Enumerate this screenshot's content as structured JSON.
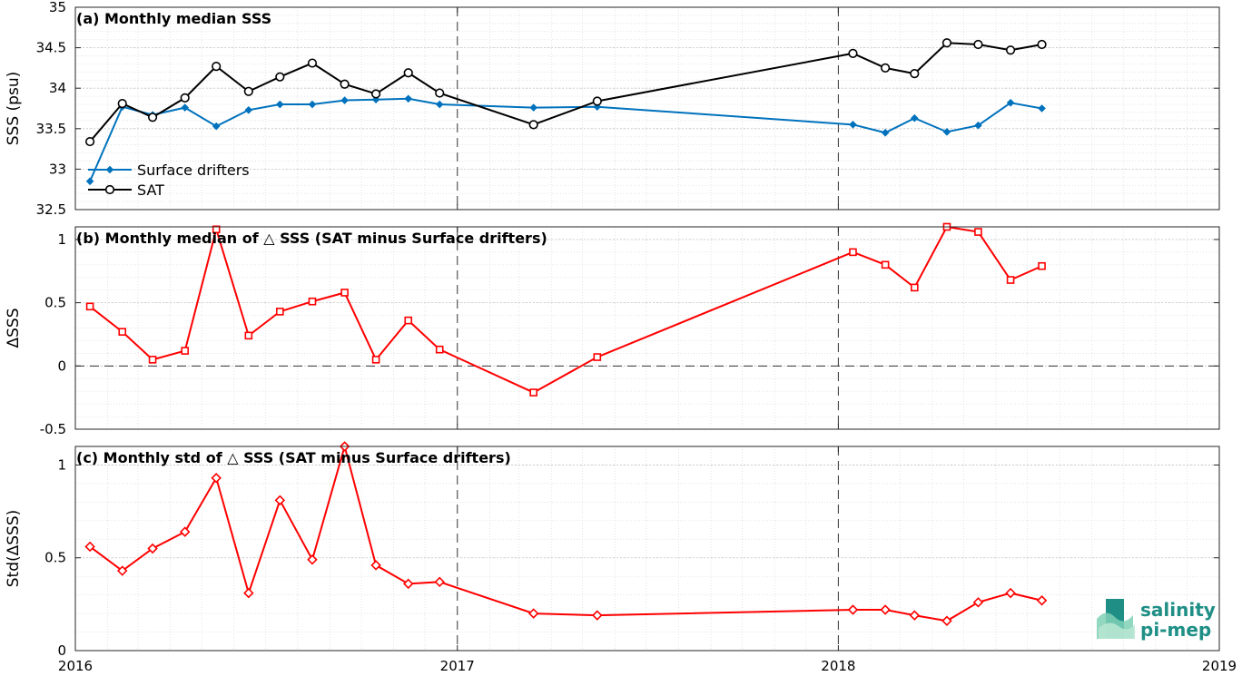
{
  "chart_data": [
    {
      "type": "line",
      "panel": "a",
      "title": "(a) Monthly median SSS",
      "ylabel": "SSS (psu)",
      "xlabel": "",
      "xlim": [
        "2016-01-01",
        "2019-01-01"
      ],
      "ylim": [
        32.5,
        35
      ],
      "yticks": [
        32.5,
        33,
        33.5,
        34,
        34.5,
        35
      ],
      "ytick_labels": [
        "32.5",
        "33",
        "33.5",
        "34",
        "34.5",
        "35"
      ],
      "grid": true,
      "legend": "bottom-left",
      "series": [
        {
          "name": "Surface drifters",
          "color": "#0072BD",
          "marker": "diamond",
          "x": [
            "2016-01-15",
            "2016-02-15",
            "2016-03-15",
            "2016-04-15",
            "2016-05-15",
            "2016-06-15",
            "2016-07-15",
            "2016-08-15",
            "2016-09-15",
            "2016-10-15",
            "2016-11-15",
            "2016-12-15",
            "2017-03-15",
            "2017-05-15",
            "2018-01-15",
            "2018-02-15",
            "2018-03-15",
            "2018-04-15",
            "2018-05-15",
            "2018-06-15",
            "2018-07-15"
          ],
          "y": [
            32.85,
            33.77,
            33.67,
            33.76,
            33.53,
            33.73,
            33.8,
            33.8,
            33.85,
            33.86,
            33.87,
            33.8,
            33.76,
            33.77,
            33.55,
            33.45,
            33.63,
            33.46,
            33.54,
            33.82,
            33.75
          ]
        },
        {
          "name": "SAT",
          "color": "#000000",
          "marker": "circle",
          "x": [
            "2016-01-15",
            "2016-02-15",
            "2016-03-15",
            "2016-04-15",
            "2016-05-15",
            "2016-06-15",
            "2016-07-15",
            "2016-08-15",
            "2016-09-15",
            "2016-10-15",
            "2016-11-15",
            "2016-12-15",
            "2017-03-15",
            "2017-05-15",
            "2018-01-15",
            "2018-02-15",
            "2018-03-15",
            "2018-04-15",
            "2018-05-15",
            "2018-06-15",
            "2018-07-15"
          ],
          "y": [
            33.34,
            33.81,
            33.64,
            33.88,
            34.27,
            33.96,
            34.14,
            34.31,
            34.05,
            33.93,
            34.19,
            33.94,
            33.55,
            33.84,
            34.43,
            34.25,
            34.18,
            34.56,
            34.54,
            34.47,
            34.54
          ]
        }
      ]
    },
    {
      "type": "line",
      "panel": "b",
      "title": "(b) Monthly median of △ SSS (SAT minus Surface drifters)",
      "ylabel": "ΔSSS",
      "xlabel": "",
      "xlim": [
        "2016-01-01",
        "2019-01-01"
      ],
      "ylim": [
        -0.5,
        1.1
      ],
      "yticks": [
        -0.5,
        0,
        0.5,
        1
      ],
      "ytick_labels": [
        "-0.5",
        "0",
        "0.5",
        "1"
      ],
      "grid": true,
      "series": [
        {
          "color": "#FF0000",
          "marker": "square",
          "x": [
            "2016-01-15",
            "2016-02-15",
            "2016-03-15",
            "2016-04-15",
            "2016-05-15",
            "2016-06-15",
            "2016-07-15",
            "2016-08-15",
            "2016-09-15",
            "2016-10-15",
            "2016-11-15",
            "2016-12-15",
            "2017-03-15",
            "2017-05-15",
            "2018-01-15",
            "2018-02-15",
            "2018-03-15",
            "2018-04-15",
            "2018-05-15",
            "2018-06-15",
            "2018-07-15"
          ],
          "y": [
            0.47,
            0.27,
            0.05,
            0.12,
            1.08,
            0.24,
            0.43,
            0.51,
            0.58,
            0.05,
            0.36,
            0.13,
            -0.21,
            0.07,
            0.9,
            0.8,
            0.62,
            1.1,
            1.06,
            0.68,
            0.79
          ]
        }
      ]
    },
    {
      "type": "line",
      "panel": "c",
      "title": "(c) Monthly std of △ SSS (SAT minus Surface drifters)",
      "ylabel": "Std(ΔSSS)",
      "xlabel": "",
      "xlim": [
        "2016-01-01",
        "2019-01-01"
      ],
      "ylim": [
        0,
        1.1
      ],
      "yticks": [
        0,
        0.5,
        1
      ],
      "ytick_labels": [
        "0",
        "0.5",
        "1"
      ],
      "xticks": [
        "2016-01-01",
        "2017-01-01",
        "2018-01-01",
        "2019-01-01"
      ],
      "xtick_labels": [
        "2016",
        "2017",
        "2018",
        "2019"
      ],
      "grid": true,
      "series": [
        {
          "color": "#FF0000",
          "marker": "diamond-open",
          "x": [
            "2016-01-15",
            "2016-02-15",
            "2016-03-15",
            "2016-04-15",
            "2016-05-15",
            "2016-06-15",
            "2016-07-15",
            "2016-08-15",
            "2016-09-15",
            "2016-10-15",
            "2016-11-15",
            "2016-12-15",
            "2017-03-15",
            "2017-05-15",
            "2018-01-15",
            "2018-02-15",
            "2018-03-15",
            "2018-04-15",
            "2018-05-15",
            "2018-06-15",
            "2018-07-15"
          ],
          "y": [
            0.56,
            0.43,
            0.55,
            0.64,
            0.93,
            0.31,
            0.81,
            0.49,
            1.1,
            0.46,
            0.36,
            0.37,
            0.2,
            0.19,
            0.22,
            0.22,
            0.19,
            0.16,
            0.26,
            0.31,
            0.27
          ]
        }
      ]
    }
  ],
  "logo": {
    "line1": "salinity",
    "line2": "pi-mep",
    "color": "#1f8f86"
  }
}
